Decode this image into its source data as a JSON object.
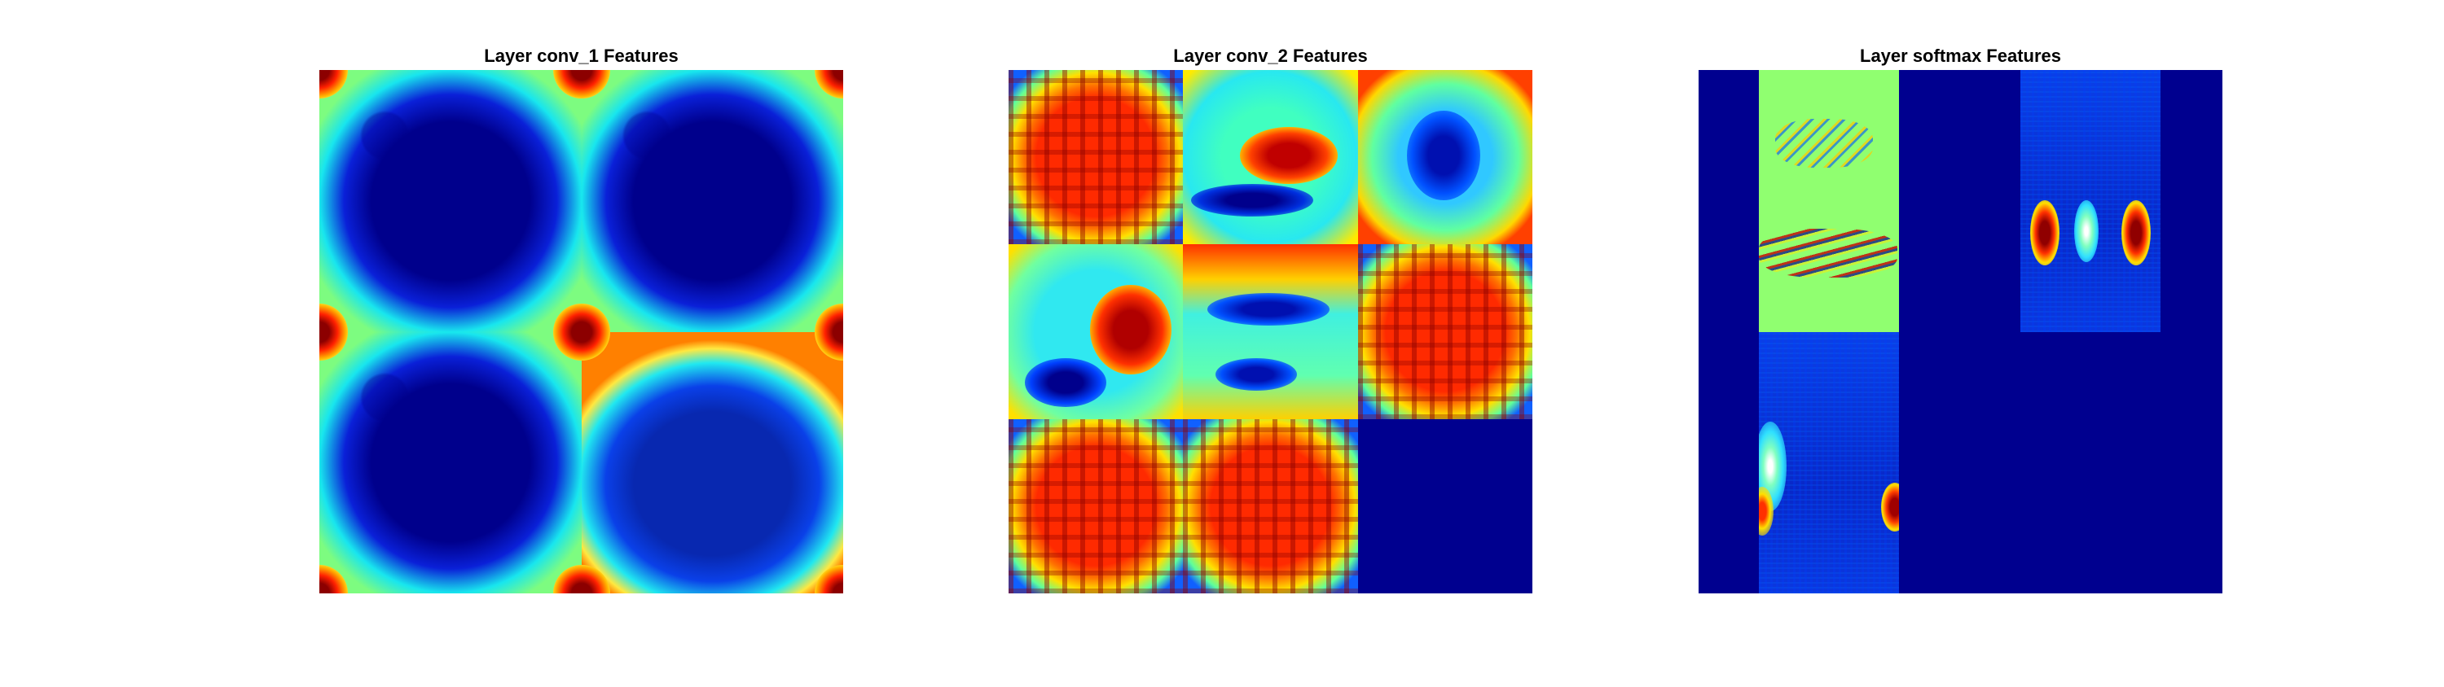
{
  "panels": [
    {
      "title": "Layer conv_1 Features"
    },
    {
      "title": "Layer conv_2 Features"
    },
    {
      "title": "Layer softmax Features"
    }
  ],
  "colormap": [
    "#00008f",
    "#0040ff",
    "#00ffff",
    "#80ff80",
    "#ffff00",
    "#ff4000",
    "#800000"
  ],
  "icons": []
}
